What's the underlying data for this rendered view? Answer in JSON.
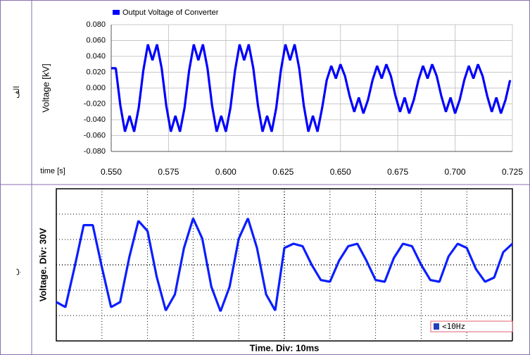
{
  "chart_data": [
    {
      "type": "line",
      "panel_label": "الف",
      "ylabel": "Voltage [kV]",
      "xlabel": "time [s]",
      "legend": "top-left",
      "grid": true,
      "xlim": [
        0.55,
        0.725
      ],
      "xticks": [
        {
          "value": 0.55,
          "label": "0.550"
        },
        {
          "value": 0.575,
          "label": "0.575"
        },
        {
          "value": 0.6,
          "label": "0.600"
        },
        {
          "value": 0.625,
          "label": "0.625"
        },
        {
          "value": 0.65,
          "label": "0.650"
        },
        {
          "value": 0.675,
          "label": "0.675"
        },
        {
          "value": 0.7,
          "label": "0.700"
        },
        {
          "value": 0.725,
          "label": "0.725"
        }
      ],
      "ylim": [
        -0.08,
        0.08
      ],
      "yticks": [
        {
          "value": -0.08,
          "label": "-0.080"
        },
        {
          "value": -0.06,
          "label": "-0.060"
        },
        {
          "value": -0.04,
          "label": "-0.040"
        },
        {
          "value": -0.02,
          "label": "-0.020"
        },
        {
          "value": 0,
          "label": "0.000"
        },
        {
          "value": 0.02,
          "label": "0.020"
        },
        {
          "value": 0.04,
          "label": "0.040"
        },
        {
          "value": 0.06,
          "label": "0.060"
        },
        {
          "value": 0.08,
          "label": "0.080"
        }
      ],
      "x": [
        0.55,
        0.552,
        0.554,
        0.556,
        0.558,
        0.56,
        0.562,
        0.564,
        0.566,
        0.568,
        0.57,
        0.572,
        0.574,
        0.576,
        0.578,
        0.58,
        0.582,
        0.584,
        0.586,
        0.588,
        0.59,
        0.592,
        0.594,
        0.596,
        0.598,
        0.6,
        0.602,
        0.604,
        0.606,
        0.608,
        0.61,
        0.612,
        0.614,
        0.616,
        0.618,
        0.62,
        0.622,
        0.624,
        0.626,
        0.628,
        0.63,
        0.632,
        0.634,
        0.636,
        0.638,
        0.64,
        0.642,
        0.644,
        0.646,
        0.648,
        0.65,
        0.652,
        0.654,
        0.656,
        0.658,
        0.66,
        0.662,
        0.664,
        0.666,
        0.668,
        0.67,
        0.672,
        0.674,
        0.676,
        0.678,
        0.68,
        0.682,
        0.684,
        0.686,
        0.688,
        0.69,
        0.692,
        0.694,
        0.696,
        0.698,
        0.7,
        0.702,
        0.704,
        0.706,
        0.708,
        0.71,
        0.712,
        0.714,
        0.716,
        0.718,
        0.72,
        0.722,
        0.724
      ],
      "series": [
        {
          "name": "Output Voltage of Converter",
          "color": "#0000ff",
          "values": [
            0.025,
            0.025,
            -0.022,
            -0.055,
            -0.035,
            -0.055,
            -0.025,
            0.022,
            0.055,
            0.035,
            0.055,
            0.025,
            -0.022,
            -0.055,
            -0.035,
            -0.055,
            -0.025,
            0.022,
            0.055,
            0.035,
            0.055,
            0.025,
            -0.022,
            -0.055,
            -0.035,
            -0.055,
            -0.025,
            0.022,
            0.055,
            0.035,
            0.055,
            0.025,
            -0.022,
            -0.055,
            -0.035,
            -0.055,
            -0.025,
            0.022,
            0.055,
            0.035,
            0.055,
            0.025,
            -0.022,
            -0.055,
            -0.035,
            -0.055,
            -0.025,
            0.01,
            0.028,
            0.012,
            0.03,
            0.015,
            -0.01,
            -0.03,
            -0.012,
            -0.032,
            -0.015,
            0.01,
            0.028,
            0.012,
            0.03,
            0.015,
            -0.01,
            -0.03,
            -0.012,
            -0.032,
            -0.015,
            0.01,
            0.028,
            0.012,
            0.03,
            0.015,
            -0.01,
            -0.03,
            -0.012,
            -0.032,
            -0.015,
            0.01,
            0.028,
            0.012,
            0.03,
            0.015,
            -0.01,
            -0.03,
            -0.012,
            -0.032,
            -0.015,
            0.01
          ]
        }
      ]
    },
    {
      "type": "line",
      "panel_label": "ب",
      "ylabel": "Voltage. Div: 30V",
      "xlabel": "Time. Div: 10ms",
      "annotation": "<10Hz",
      "xlim": [
        0,
        100
      ],
      "ylim": [
        -90,
        90
      ],
      "x": [
        0,
        2,
        4,
        6,
        8,
        10,
        12,
        14,
        16,
        18,
        20,
        22,
        24,
        26,
        28,
        30,
        32,
        34,
        36,
        38,
        40,
        42,
        44,
        46,
        48,
        50,
        52,
        54,
        56,
        58,
        60,
        62,
        64,
        66,
        68,
        70,
        72,
        74,
        76,
        78,
        80,
        82,
        84,
        86,
        88,
        90,
        92,
        94,
        96,
        98,
        100
      ],
      "series": [
        {
          "color": "#0a1eff",
          "values": [
            -44,
            -50,
            -3,
            47,
            47,
            -3,
            -50,
            -44,
            9,
            52,
            40,
            -14,
            -54,
            -35,
            20,
            55,
            31,
            -26,
            -55,
            -26,
            31,
            55,
            20,
            -35,
            -54,
            20,
            25,
            22,
            0,
            -18,
            -20,
            5,
            22,
            25,
            5,
            -18,
            -20,
            8,
            25,
            22,
            0,
            -18,
            -20,
            10,
            25,
            20,
            -5,
            -20,
            -15,
            15,
            25
          ]
        }
      ]
    }
  ]
}
